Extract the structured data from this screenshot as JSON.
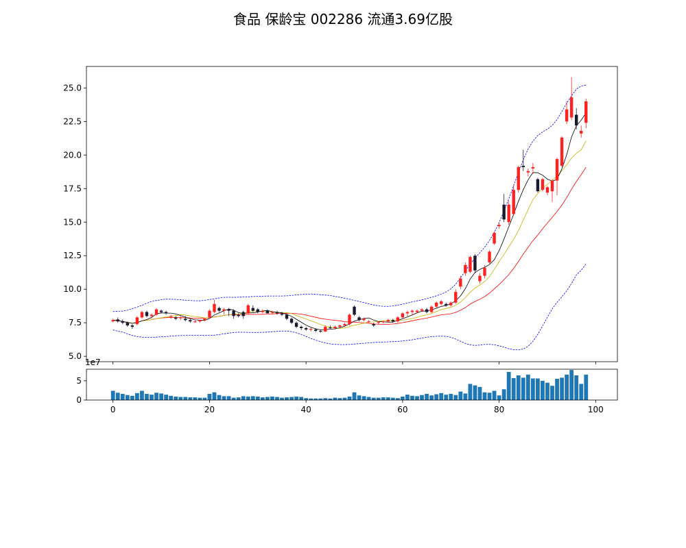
{
  "chart_data": {
    "type": "candlestick",
    "title": "食品 保龄宝 002286 流通3.69亿股",
    "x_ticks": [
      0,
      20,
      40,
      60,
      80,
      100
    ],
    "price_yticks": [
      "5.0",
      "7.5",
      "10.0",
      "12.5",
      "15.0",
      "17.5",
      "20.0",
      "22.5",
      "25.0"
    ],
    "price_ylim": [
      4.6,
      26.6
    ],
    "volume_yticks": [
      "0",
      "5"
    ],
    "volume_ylim": [
      0,
      8.0
    ],
    "volume_multiplier_label": "1e7",
    "colors": {
      "up": "#ff2020",
      "down": "#1a1a2e",
      "ma_short": "#000000",
      "ma_mid": "#c8b400",
      "ma_long": "#ff0000",
      "boll": "#0000ff",
      "volume": "#1f77b4"
    },
    "ohlc": [
      [
        7.6,
        7.8,
        7.55,
        7.7
      ],
      [
        7.75,
        7.9,
        7.5,
        7.6
      ],
      [
        7.6,
        7.75,
        7.4,
        7.5
      ],
      [
        7.5,
        7.6,
        7.2,
        7.3
      ],
      [
        7.3,
        7.4,
        7.05,
        7.2
      ],
      [
        7.4,
        8.0,
        7.3,
        7.9
      ],
      [
        7.9,
        8.4,
        7.8,
        8.3
      ],
      [
        8.3,
        8.4,
        7.9,
        8.0
      ],
      [
        8.0,
        8.2,
        7.8,
        8.1
      ],
      [
        8.1,
        8.6,
        8.0,
        8.5
      ],
      [
        8.4,
        8.5,
        8.2,
        8.3
      ],
      [
        8.3,
        8.4,
        8.1,
        8.2
      ],
      [
        8.0,
        8.1,
        7.8,
        8.0
      ],
      [
        7.9,
        8.0,
        7.7,
        7.8
      ],
      [
        7.9,
        8.0,
        7.7,
        7.9
      ],
      [
        7.8,
        8.0,
        7.6,
        7.7
      ],
      [
        7.7,
        7.8,
        7.5,
        7.6
      ],
      [
        7.6,
        7.7,
        7.5,
        7.6
      ],
      [
        7.6,
        7.7,
        7.5,
        7.7
      ],
      [
        7.7,
        7.8,
        7.6,
        7.8
      ],
      [
        7.9,
        8.5,
        7.8,
        8.4
      ],
      [
        8.3,
        9.2,
        8.2,
        8.9
      ],
      [
        8.6,
        8.7,
        8.3,
        8.4
      ],
      [
        8.4,
        8.6,
        8.1,
        8.5
      ],
      [
        8.5,
        8.6,
        8.0,
        8.4
      ],
      [
        8.4,
        8.5,
        7.8,
        8.0
      ],
      [
        8.1,
        8.2,
        7.9,
        8.0
      ],
      [
        8.3,
        8.4,
        7.8,
        8.0
      ],
      [
        8.2,
        8.9,
        8.1,
        8.8
      ],
      [
        8.6,
        8.8,
        8.3,
        8.4
      ],
      [
        8.5,
        8.6,
        8.2,
        8.3
      ],
      [
        8.3,
        8.5,
        8.2,
        8.4
      ],
      [
        8.4,
        8.5,
        8.2,
        8.2
      ],
      [
        8.3,
        8.4,
        8.1,
        8.3
      ],
      [
        8.3,
        8.4,
        8.1,
        8.2
      ],
      [
        8.2,
        8.3,
        8.0,
        8.1
      ],
      [
        8.1,
        8.2,
        7.7,
        7.8
      ],
      [
        7.8,
        7.9,
        7.4,
        7.5
      ],
      [
        7.5,
        7.6,
        7.1,
        7.2
      ],
      [
        7.2,
        7.3,
        6.95,
        7.1
      ],
      [
        7.1,
        7.2,
        6.9,
        7.0
      ],
      [
        7.0,
        7.15,
        6.85,
        7.05
      ],
      [
        7.0,
        7.1,
        6.8,
        6.9
      ],
      [
        6.9,
        7.0,
        6.75,
        6.85
      ],
      [
        6.85,
        7.3,
        6.8,
        7.2
      ],
      [
        7.15,
        7.3,
        7.05,
        7.1
      ],
      [
        7.1,
        7.3,
        7.0,
        7.2
      ],
      [
        7.2,
        7.35,
        7.1,
        7.3
      ],
      [
        7.3,
        7.5,
        7.2,
        7.4
      ],
      [
        7.4,
        8.2,
        7.3,
        8.1
      ],
      [
        8.7,
        8.8,
        8.0,
        8.1
      ],
      [
        7.9,
        8.0,
        7.6,
        7.7
      ],
      [
        7.7,
        7.9,
        7.6,
        7.8
      ],
      [
        7.6,
        7.7,
        7.5,
        7.6
      ],
      [
        7.4,
        7.5,
        7.2,
        7.3
      ],
      [
        7.5,
        7.6,
        7.4,
        7.55
      ],
      [
        7.55,
        7.65,
        7.45,
        7.6
      ],
      [
        7.6,
        7.8,
        7.5,
        7.7
      ],
      [
        7.7,
        7.8,
        7.5,
        7.6
      ],
      [
        7.6,
        8.0,
        7.5,
        7.9
      ],
      [
        7.9,
        8.3,
        7.8,
        8.2
      ],
      [
        8.2,
        8.4,
        8.0,
        8.3
      ],
      [
        8.3,
        8.5,
        8.1,
        8.4
      ],
      [
        8.3,
        8.5,
        8.2,
        8.4
      ],
      [
        8.4,
        8.6,
        8.3,
        8.5
      ],
      [
        8.5,
        8.6,
        8.2,
        8.3
      ],
      [
        8.3,
        8.8,
        8.2,
        8.7
      ],
      [
        8.7,
        9.1,
        8.6,
        9.0
      ],
      [
        8.9,
        9.2,
        8.8,
        9.1
      ],
      [
        8.9,
        9.0,
        8.7,
        8.8
      ],
      [
        8.8,
        9.1,
        8.7,
        9.0
      ],
      [
        9.0,
        10.0,
        8.9,
        9.8
      ],
      [
        10.2,
        11.0,
        10.0,
        10.8
      ],
      [
        11.2,
        12.0,
        11.0,
        11.8
      ],
      [
        11.3,
        12.5,
        11.2,
        12.4
      ],
      [
        12.5,
        12.6,
        11.2,
        11.4
      ],
      [
        10.6,
        11.2,
        10.4,
        11.0
      ],
      [
        11.0,
        11.8,
        10.8,
        11.6
      ],
      [
        12.0,
        12.9,
        11.9,
        12.8
      ],
      [
        13.4,
        14.3,
        13.3,
        14.2
      ],
      [
        14.7,
        15.0,
        14.5,
        14.8
      ],
      [
        16.3,
        17.1,
        15.0,
        15.2
      ],
      [
        15.0,
        16.6,
        14.8,
        16.3
      ],
      [
        15.6,
        17.8,
        15.5,
        17.4
      ],
      [
        17.4,
        19.2,
        17.2,
        19.1
      ],
      [
        19.2,
        20.4,
        18.8,
        19.1
      ],
      [
        18.7,
        19.0,
        18.4,
        18.8
      ],
      [
        19.0,
        19.4,
        18.6,
        19.1
      ],
      [
        18.2,
        18.3,
        17.2,
        17.3
      ],
      [
        17.4,
        18.3,
        17.3,
        18.2
      ],
      [
        17.2,
        17.7,
        17.0,
        17.6
      ],
      [
        17.3,
        18.2,
        16.5,
        18.1
      ],
      [
        18.1,
        19.8,
        17.0,
        19.7
      ],
      [
        19.2,
        21.4,
        19.1,
        21.3
      ],
      [
        22.5,
        24.0,
        22.3,
        23.4
      ],
      [
        22.8,
        25.8,
        22.6,
        24.3
      ],
      [
        23.0,
        23.5,
        21.9,
        22.2
      ],
      [
        21.6,
        22.2,
        21.3,
        21.8
      ],
      [
        22.4,
        24.2,
        22.0,
        24.0
      ]
    ],
    "volume": [
      2.4,
      1.9,
      1.6,
      1.3,
      1.1,
      1.8,
      2.4,
      1.6,
      1.4,
      1.9,
      1.7,
      1.4,
      1.1,
      0.9,
      0.8,
      0.8,
      0.7,
      0.7,
      0.6,
      0.6,
      1.6,
      2.0,
      1.3,
      1.0,
      1.0,
      0.6,
      0.7,
      1.0,
      0.9,
      1.0,
      0.9,
      0.7,
      0.8,
      0.9,
      0.8,
      0.6,
      0.7,
      0.8,
      0.9,
      0.8,
      0.5,
      0.4,
      0.4,
      0.4,
      0.5,
      0.4,
      0.6,
      0.5,
      0.6,
      0.9,
      2.0,
      1.2,
      1.0,
      0.8,
      0.6,
      0.6,
      0.7,
      0.7,
      0.6,
      0.5,
      0.9,
      1.4,
      1.1,
      1.0,
      1.3,
      1.6,
      1.2,
      1.5,
      1.8,
      1.4,
      1.6,
      1.3,
      2.2,
      1.7,
      4.2,
      3.8,
      3.4,
      2.0,
      1.9,
      2.4,
      1.2,
      2.8,
      7.3,
      5.7,
      6.4,
      5.8,
      6.6,
      5.6,
      5.6,
      5.0,
      4.5,
      3.7,
      5.5,
      5.8,
      6.6,
      7.8,
      6.4,
      4.2,
      6.6
    ]
  }
}
